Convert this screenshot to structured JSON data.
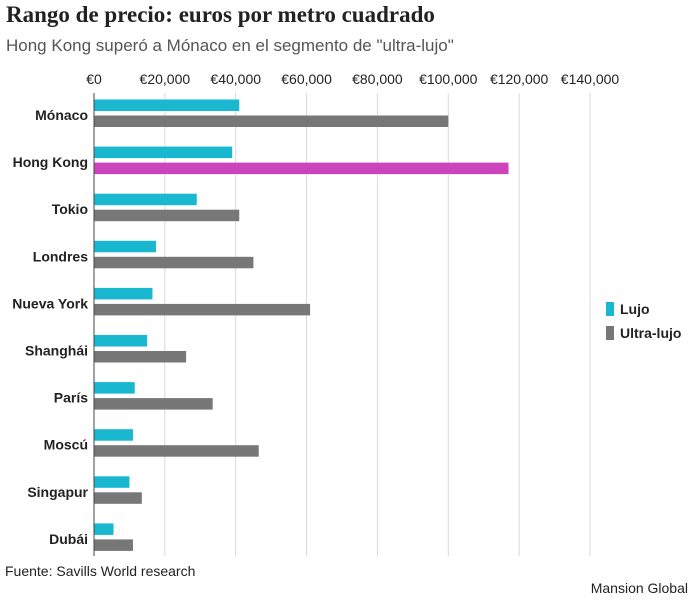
{
  "title": "Rango de precio: euros por metro cuadrado",
  "subtitle": "Hong Kong superó a Mónaco en el segmento de \"ultra-lujo\"",
  "source": "Fuente: Savills World research",
  "credit": "Mansion Global",
  "chart_data": {
    "type": "bar",
    "orientation": "horizontal",
    "xlim": [
      0,
      140000
    ],
    "x_ticks": [
      0,
      20000,
      40000,
      60000,
      80000,
      100000,
      120000,
      140000
    ],
    "x_tick_labels": [
      "€0",
      "€20,000",
      "€40,000",
      "€60,000",
      "€80,000",
      "€100,000",
      "€120,000",
      "€140,000"
    ],
    "grid": true,
    "legend_position": "right",
    "categories": [
      "Mónaco",
      "Hong Kong",
      "Tokio",
      "Londres",
      "Nueva York",
      "Shanghái",
      "París",
      "Moscú",
      "Singapur",
      "Dubái"
    ],
    "series": [
      {
        "name": "Lujo",
        "color": "#1ab7d0",
        "values": [
          41000,
          39000,
          29000,
          17500,
          16500,
          15000,
          11500,
          11000,
          10000,
          5500
        ]
      },
      {
        "name": "Ultra-lujo",
        "color": "#777777",
        "values": [
          100000,
          117000,
          41000,
          45000,
          61000,
          26000,
          33500,
          46500,
          13500,
          11000
        ]
      }
    ],
    "highlight": {
      "category": "Hong Kong",
      "series": "Ultra-lujo",
      "color": "#cc44bb"
    }
  }
}
